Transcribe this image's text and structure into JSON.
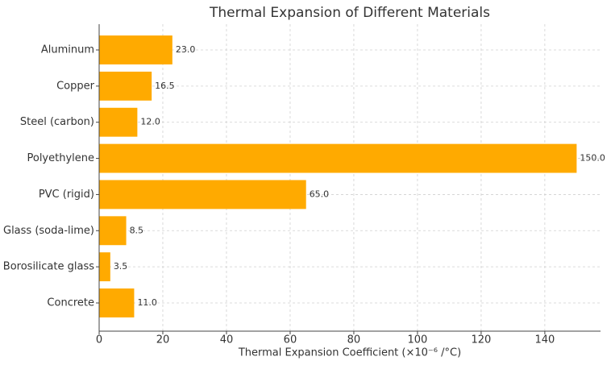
{
  "chart_data": {
    "type": "barh",
    "title": "Thermal Expansion of Different Materials",
    "x_label": "Thermal Expansion Coefficient (×10⁻⁶ /°C)",
    "categories": [
      "Aluminum",
      "Copper",
      "Steel (carbon)",
      "Polyethylene",
      "PVC (rigid)",
      "Glass (soda-lime)",
      "Borosilicate glass",
      "Concrete"
    ],
    "values": [
      23,
      16.5,
      12,
      150,
      65,
      8.5,
      3.5,
      11
    ],
    "value_labels": [
      "23.0",
      "16.5",
      "12.0",
      "150.0",
      "65.0",
      "8.5",
      "3.5",
      "11.0"
    ],
    "color": "#ffaa00",
    "xlim": [
      0,
      157.5
    ],
    "xticks": [
      0,
      20,
      40,
      60,
      80,
      100,
      120,
      140
    ],
    "grid": true
  }
}
